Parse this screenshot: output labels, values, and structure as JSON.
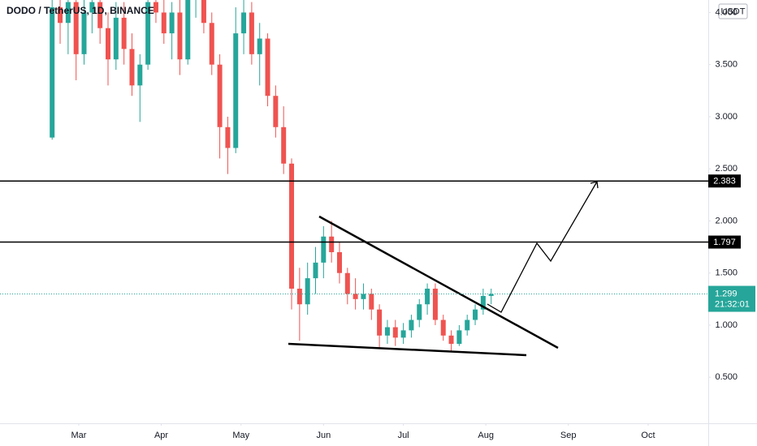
{
  "chart_data": {
    "type": "candlestick",
    "title": "DODO / TetherUS, 1D, BINANCE",
    "currency": "USDT",
    "x": [
      50,
      53,
      56,
      59,
      62,
      65,
      68,
      71,
      74,
      77,
      80,
      83,
      86,
      89,
      92,
      95,
      98,
      101,
      104,
      107,
      110,
      113,
      116,
      119,
      122,
      125,
      128,
      131,
      134,
      137,
      140,
      143,
      146,
      149,
      152,
      155,
      158,
      161,
      164,
      167,
      170,
      173,
      176,
      179,
      182,
      185,
      188,
      191,
      194,
      197,
      200,
      203,
      206,
      209,
      212,
      215
    ],
    "open": [
      2.8,
      4.05,
      3.9,
      4.1,
      3.6,
      4.0,
      4.1,
      3.85,
      3.55,
      3.95,
      3.65,
      3.3,
      3.5,
      4.1,
      4.0,
      3.8,
      4.0,
      3.55,
      4.15,
      4.2,
      3.9,
      3.5,
      2.9,
      2.7,
      3.8,
      4.0,
      3.6,
      3.75,
      3.2,
      2.9,
      2.55,
      1.35,
      1.2,
      1.45,
      1.6,
      1.85,
      1.7,
      1.5,
      1.3,
      1.25,
      1.3,
      1.15,
      0.9,
      0.98,
      0.88,
      0.95,
      1.05,
      1.2,
      1.35,
      1.05,
      0.9,
      0.82,
      0.95,
      1.05,
      1.15,
      1.28
    ],
    "high": [
      4.2,
      4.3,
      4.2,
      4.2,
      4.2,
      4.3,
      4.2,
      4.0,
      4.1,
      4.1,
      3.8,
      3.6,
      4.25,
      4.3,
      4.25,
      4.1,
      4.2,
      4.25,
      4.3,
      4.3,
      4.0,
      3.6,
      3.0,
      4.05,
      4.2,
      4.1,
      3.9,
      3.8,
      3.3,
      3.1,
      2.6,
      1.55,
      1.6,
      1.75,
      1.95,
      2.0,
      1.8,
      1.55,
      1.45,
      1.4,
      1.35,
      1.2,
      1.05,
      1.05,
      1.02,
      1.1,
      1.25,
      1.4,
      1.4,
      1.1,
      0.95,
      1.0,
      1.1,
      1.2,
      1.35,
      1.35
    ],
    "low": [
      2.78,
      3.7,
      3.6,
      3.35,
      3.5,
      3.8,
      3.7,
      3.3,
      3.45,
      3.5,
      3.2,
      2.95,
      3.45,
      3.9,
      3.7,
      3.55,
      3.4,
      3.5,
      3.95,
      3.8,
      3.4,
      2.6,
      2.45,
      2.65,
      3.6,
      3.5,
      3.3,
      3.1,
      2.8,
      2.45,
      1.15,
      0.85,
      1.1,
      1.3,
      1.45,
      1.6,
      1.4,
      1.2,
      1.15,
      1.15,
      1.05,
      0.78,
      0.82,
      0.8,
      0.82,
      0.88,
      0.98,
      1.1,
      1.0,
      0.85,
      0.75,
      0.8,
      0.9,
      1.0,
      1.1,
      1.2
    ],
    "close": [
      4.05,
      3.9,
      4.1,
      3.6,
      4.0,
      4.1,
      3.85,
      3.55,
      3.95,
      3.65,
      3.3,
      3.5,
      4.1,
      4.0,
      3.8,
      4.0,
      3.55,
      4.15,
      4.2,
      3.9,
      3.5,
      2.9,
      2.7,
      3.8,
      4.0,
      3.6,
      3.75,
      3.2,
      2.9,
      2.55,
      1.35,
      1.2,
      1.45,
      1.6,
      1.85,
      1.7,
      1.5,
      1.3,
      1.25,
      1.3,
      1.15,
      0.9,
      0.98,
      0.88,
      0.95,
      1.05,
      1.2,
      1.35,
      1.05,
      0.9,
      0.82,
      0.95,
      1.05,
      1.15,
      1.28,
      1.299
    ],
    "up_color": "#26a69a",
    "down_color": "#ef5350",
    "xlim": [
      30.4,
      296.6
    ],
    "xticks": [
      {
        "value": 60,
        "label": "Mar"
      },
      {
        "value": 91,
        "label": "Apr"
      },
      {
        "value": 121,
        "label": "May"
      },
      {
        "value": 152,
        "label": "Jun"
      },
      {
        "value": 182,
        "label": "Jul"
      },
      {
        "value": 213,
        "label": "Aug"
      },
      {
        "value": 244,
        "label": "Sep"
      },
      {
        "value": 274,
        "label": "Oct"
      }
    ],
    "ylim": [
      0.058,
      4.12
    ],
    "yticks": [
      {
        "value": 0.5,
        "label": "0.500"
      },
      {
        "value": 1,
        "label": "1.000"
      },
      {
        "value": 1.5,
        "label": "1.500"
      },
      {
        "value": 2,
        "label": "2.000"
      },
      {
        "value": 2.5,
        "label": "2.500"
      },
      {
        "value": 3,
        "label": "3.000"
      },
      {
        "value": 3.5,
        "label": "3.500"
      },
      {
        "value": 4,
        "label": "4.000"
      }
    ],
    "levels": [
      2.383,
      1.797
    ],
    "last_price": 1.299,
    "countdown": "21:32:01"
  }
}
